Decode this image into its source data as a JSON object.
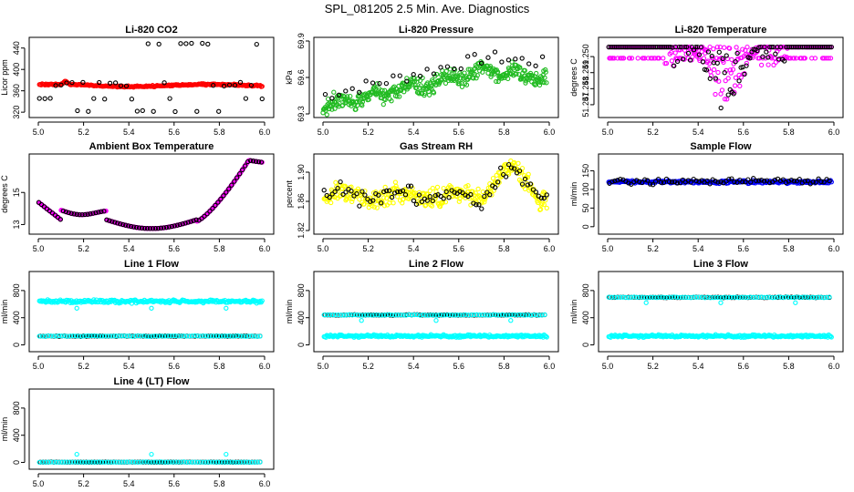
{
  "title": "SPL_081205  2.5 Min. Ave. Diagnostics",
  "colors": {
    "black": "#000000",
    "red": "#ff0000",
    "green": "#22bb22",
    "magenta": "#ff00ff",
    "yellow": "#ffff00",
    "blue": "#0000ff",
    "cyan": "#00ffff"
  },
  "chart_data": [
    {
      "type": "scatter",
      "title": "Li-820 CO2",
      "ylabel": "Licor ppm",
      "xlim": [
        5.0,
        6.0
      ],
      "xticks": [
        "5.0",
        "5.2",
        "5.4",
        "5.6",
        "5.8",
        "6.0"
      ],
      "ylim": [
        310,
        460
      ],
      "yticks": [
        320,
        360,
        400,
        440
      ],
      "ytick_labels": [
        "320",
        "360",
        "400",
        "440"
      ],
      "series": [
        {
          "name": "dense",
          "color": "red",
          "kind": "smooth",
          "base": 370,
          "amp": 2,
          "noise": 1.5,
          "bumps": [
            {
              "x": 5.12,
              "amp": 7,
              "w": 0.012
            }
          ]
        },
        {
          "name": "raw",
          "color": "black",
          "kind": "levels",
          "step": 0.024,
          "seed": 3,
          "levels": [
            322,
            345,
            370,
            375,
            448
          ]
        }
      ]
    },
    {
      "type": "scatter",
      "title": "Li-820 Pressure",
      "ylabel": "kPa",
      "xlim": [
        5.0,
        6.0
      ],
      "xticks": [
        "5.0",
        "5.2",
        "5.4",
        "5.6",
        "5.8",
        "6.0"
      ],
      "ylim": [
        69.27,
        69.93
      ],
      "yticks": [
        69.3,
        69.6,
        69.9
      ],
      "ytick_labels": [
        "69.3",
        "69.6",
        "69.9"
      ],
      "series": [
        {
          "name": "dense",
          "color": "green",
          "kind": "pressure",
          "noise": 0.07
        },
        {
          "name": "raw",
          "color": "black",
          "kind": "pressure_hi",
          "step": 0.03,
          "seed": 7
        }
      ]
    },
    {
      "type": "scatter",
      "title": "Li-820 Temperature",
      "ylabel": "degrees C",
      "xlim": [
        5.0,
        6.0
      ],
      "xticks": [
        "5.0",
        "5.2",
        "5.4",
        "5.6",
        "5.8",
        "6.0"
      ],
      "ylim": [
        51.2462,
        51.2512
      ],
      "yticks": [
        51.247,
        51.248,
        51.249,
        51.25
      ],
      "ytick_labels": [
        "51.247",
        "51.248",
        "51.249",
        "51.250"
      ],
      "series": [
        {
          "name": "dense",
          "color": "magenta",
          "kind": "tempdip",
          "top": 51.2506,
          "seed": 11
        },
        {
          "name": "raw",
          "color": "black",
          "kind": "tempdip_sparse",
          "top": 51.2506,
          "seed": 5
        }
      ]
    },
    {
      "type": "scatter",
      "title": "Ambient Box Temperature",
      "ylabel": "degrees C",
      "xlim": [
        5.0,
        6.0
      ],
      "xticks": [
        "5.0",
        "5.2",
        "5.4",
        "5.6",
        "5.8",
        "6.0"
      ],
      "ylim": [
        12.4,
        17.4
      ],
      "yticks": [
        13,
        15
      ],
      "ytick_labels": [
        "13",
        "15"
      ],
      "series": [
        {
          "name": "dense",
          "color": "magenta",
          "kind": "ambient"
        },
        {
          "name": "raw",
          "color": "black",
          "kind": "ambient_sparse",
          "step": 0.012
        }
      ]
    },
    {
      "type": "scatter",
      "title": "Gas Stream RH",
      "ylabel": "percent",
      "xlim": [
        5.0,
        6.0
      ],
      "xticks": [
        "5.0",
        "5.2",
        "5.4",
        "5.6",
        "5.8",
        "6.0"
      ],
      "ylim": [
        1.815,
        1.925
      ],
      "yticks": [
        1.82,
        1.86,
        1.9
      ],
      "ytick_labels": [
        "1.82",
        "1.86",
        "1.90"
      ],
      "series": [
        {
          "name": "dense",
          "color": "yellow",
          "kind": "rh",
          "noise": 0.014,
          "seed": 17
        },
        {
          "name": "raw",
          "color": "black",
          "kind": "rh_sparse",
          "step": 0.012,
          "seed": 23
        }
      ]
    },
    {
      "type": "scatter",
      "title": "Sample Flow",
      "ylabel": "ml/min",
      "xlim": [
        5.0,
        6.0
      ],
      "xticks": [
        "5.0",
        "5.2",
        "5.4",
        "5.6",
        "5.8",
        "6.0"
      ],
      "ylim": [
        -20,
        195
      ],
      "yticks": [
        0,
        50,
        100,
        150
      ],
      "ytick_labels": [
        "0",
        "50",
        "100",
        "150"
      ],
      "series": [
        {
          "name": "dense",
          "color": "blue",
          "kind": "smooth",
          "base": 120,
          "amp": 0,
          "noise": 4
        },
        {
          "name": "raw",
          "color": "black",
          "kind": "band",
          "base": 122,
          "noise": 8,
          "step": 0.012,
          "seed": 2
        }
      ]
    },
    {
      "type": "scatter",
      "title": "Line 1 Flow",
      "ylabel": "ml/min",
      "xlim": [
        5.0,
        6.0
      ],
      "xticks": [
        "5.0",
        "5.2",
        "5.4",
        "5.6",
        "5.8",
        "6.0"
      ],
      "ylim": [
        -100,
        1080
      ],
      "yticks": [
        0,
        400,
        800
      ],
      "ytick_labels": [
        "0",
        "400",
        "800"
      ],
      "series": [
        {
          "name": "cyan_high",
          "color": "cyan",
          "kind": "smooth",
          "base": 640,
          "amp": 0,
          "noise": 25,
          "outliers": [
            {
              "x": 5.17,
              "y": 540
            },
            {
              "x": 5.5,
              "y": 540
            },
            {
              "x": 5.83,
              "y": 540
            }
          ]
        },
        {
          "name": "black_low",
          "color": "black",
          "kind": "band",
          "base": 130,
          "noise": 6,
          "step": 0.012,
          "seed": 4
        },
        {
          "name": "cyan_low",
          "color": "cyan",
          "kind": "smooth",
          "base": 130,
          "amp": 0,
          "noise": 5,
          "sparse": 0.0125
        }
      ]
    },
    {
      "type": "scatter",
      "title": "Line 2 Flow",
      "ylabel": "ml/min",
      "xlim": [
        5.0,
        6.0
      ],
      "xticks": [
        "5.0",
        "5.2",
        "5.4",
        "5.6",
        "5.8",
        "6.0"
      ],
      "ylim": [
        -100,
        1080
      ],
      "yticks": [
        0,
        400,
        800
      ],
      "ytick_labels": [
        "0",
        "400",
        "800"
      ],
      "series": [
        {
          "name": "cyan_low",
          "color": "cyan",
          "kind": "smooth",
          "base": 130,
          "amp": 0,
          "noise": 18
        },
        {
          "name": "black_high",
          "color": "black",
          "kind": "band",
          "base": 440,
          "noise": 6,
          "step": 0.012,
          "seed": 8
        },
        {
          "name": "cyan_high",
          "color": "cyan",
          "kind": "smooth",
          "base": 440,
          "amp": 0,
          "noise": 6,
          "sparse": 0.0125,
          "outliers": [
            {
              "x": 5.17,
              "y": 360
            },
            {
              "x": 5.5,
              "y": 360
            },
            {
              "x": 5.83,
              "y": 360
            }
          ]
        }
      ]
    },
    {
      "type": "scatter",
      "title": "Line 3 Flow",
      "ylabel": "ml/min",
      "xlim": [
        5.0,
        6.0
      ],
      "xticks": [
        "5.0",
        "5.2",
        "5.4",
        "5.6",
        "5.8",
        "6.0"
      ],
      "ylim": [
        -100,
        1080
      ],
      "yticks": [
        0,
        400,
        800
      ],
      "ytick_labels": [
        "0",
        "400",
        "800"
      ],
      "series": [
        {
          "name": "cyan_low",
          "color": "cyan",
          "kind": "smooth",
          "base": 130,
          "amp": 0,
          "noise": 18
        },
        {
          "name": "black_high",
          "color": "black",
          "kind": "band",
          "base": 700,
          "noise": 6,
          "step": 0.012,
          "seed": 9
        },
        {
          "name": "cyan_high",
          "color": "cyan",
          "kind": "smooth",
          "base": 700,
          "amp": 0,
          "noise": 6,
          "sparse": 0.0125,
          "outliers": [
            {
              "x": 5.17,
              "y": 620
            },
            {
              "x": 5.5,
              "y": 620
            },
            {
              "x": 5.83,
              "y": 620
            }
          ]
        }
      ]
    },
    {
      "type": "scatter",
      "title": "Line 4 (LT) Flow",
      "ylabel": "ml/min",
      "xlim": [
        5.0,
        6.0
      ],
      "xticks": [
        "5.0",
        "5.2",
        "5.4",
        "5.6",
        "5.8",
        "6.0"
      ],
      "ylim": [
        -100,
        1080
      ],
      "yticks": [
        0,
        400,
        800
      ],
      "ytick_labels": [
        "0",
        "400",
        "800"
      ],
      "series": [
        {
          "name": "black_low",
          "color": "black",
          "kind": "band",
          "base": 5,
          "noise": 3,
          "step": 0.012,
          "seed": 6
        },
        {
          "name": "cyan_low",
          "color": "cyan",
          "kind": "smooth",
          "base": 5,
          "amp": 0,
          "noise": 3,
          "sparse": 0.0125,
          "outliers": [
            {
              "x": 5.17,
              "y": 120
            },
            {
              "x": 5.5,
              "y": 120
            },
            {
              "x": 5.83,
              "y": 120
            }
          ]
        }
      ]
    }
  ]
}
